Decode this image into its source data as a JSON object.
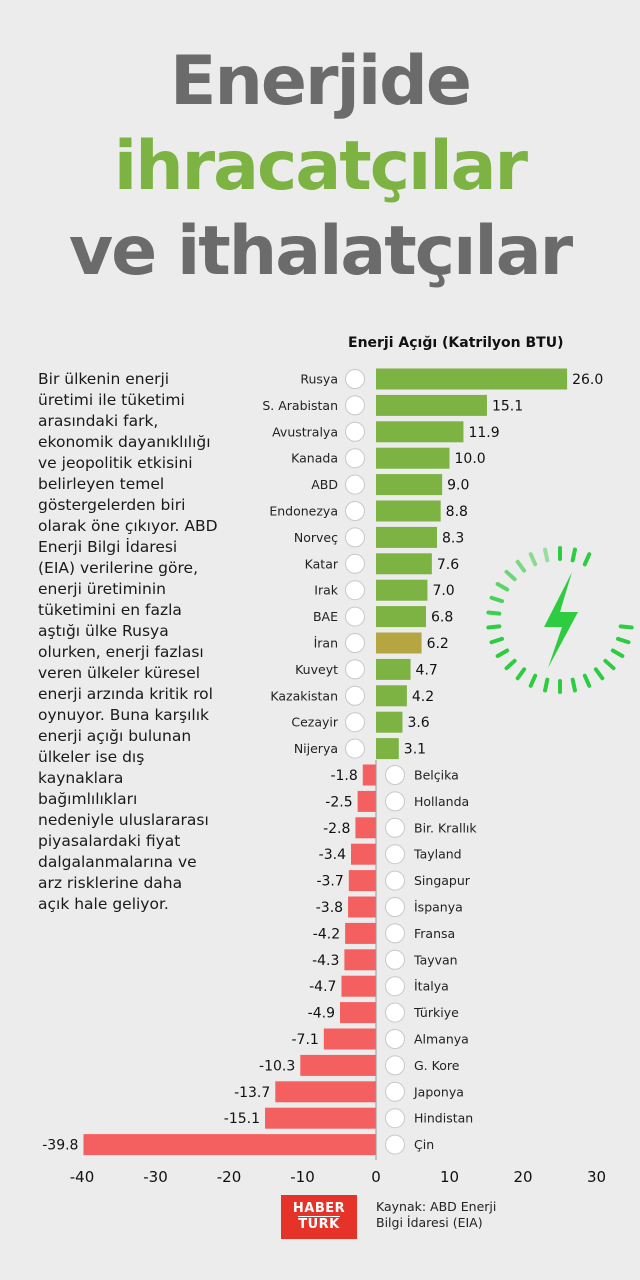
{
  "title": {
    "line1": "Enerjide",
    "line2": "ihracatçılar",
    "line3": "ve ithalatçılar"
  },
  "description": "Bir ülkenin enerji üretimi ile tüketimi arasındaki fark, ekonomik dayanıklılığı ve jeopolitik etkisini belirleyen temel göstergelerden biri olarak öne çıkıyor. ABD Enerji Bilgi İdaresi (EIA) verilerine göre, enerji üretiminin tüketimini en fazla aştığı ülke Rusya olurken, enerji fazlası veren ülkeler küresel enerji arzında kritik rol oynuyor. Buna karşılık enerji açığı bulunan ülkeler ise dış kaynaklara bağımlılıkları nedeniyle uluslararası piyasalardaki fiyat dalgalanmalarına ve arz risklerine daha açık hale geliyor.",
  "source": {
    "line1": "Kaynak: ABD Enerji",
    "line2": "Bilgi İdaresi (EIA)"
  },
  "logo": {
    "line1": "HABER",
    "line2": "TURK"
  },
  "colors": {
    "positive": "#7cb342",
    "highlight": "#b5a642",
    "negative": "#f4605f",
    "title_gray": "#6b6b6b",
    "title_green": "#7cb342",
    "icon_green": "#2ecc40"
  },
  "icon": "lightning-bolt-icon",
  "chart_data": {
    "type": "bar",
    "orientation": "horizontal",
    "ylabel": "Enerji Açığı (Katrilyon BTU)",
    "xlim": [
      -40,
      30
    ],
    "xticks": [
      -40,
      -30,
      -20,
      -10,
      0,
      10,
      20,
      30
    ],
    "grid": false,
    "categories": [
      "Rusya",
      "S. Arabistan",
      "Avustralya",
      "Kanada",
      "ABD",
      "Endonezya",
      "Norveç",
      "Katar",
      "Irak",
      "BAE",
      "İran",
      "Kuveyt",
      "Kazakistan",
      "Cezayir",
      "Nijerya",
      "Belçika",
      "Hollanda",
      "Bir. Krallık",
      "Tayland",
      "Singapur",
      "İspanya",
      "Fransa",
      "Tayvan",
      "İtalya",
      "Türkiye",
      "Almanya",
      "G. Kore",
      "Japonya",
      "Hindistan",
      "Çin"
    ],
    "values": [
      26.0,
      15.1,
      11.9,
      10.0,
      9.0,
      8.8,
      8.3,
      7.6,
      7.0,
      6.8,
      6.2,
      4.7,
      4.2,
      3.6,
      3.1,
      -1.8,
      -2.5,
      -2.8,
      -3.4,
      -3.7,
      -3.8,
      -4.2,
      -4.3,
      -4.7,
      -4.9,
      -7.1,
      -10.3,
      -13.7,
      -15.1,
      -39.8
    ],
    "value_labels": [
      "26.0",
      "15.1",
      "11.9",
      "10.0",
      "9.0",
      "8.8",
      "8.3",
      "7.6",
      "7.0",
      "6.8",
      "6.2",
      "4.7",
      "4.2",
      "3.6",
      "3.1",
      "-1.8",
      "-2.5",
      "-2.8",
      "-3.4",
      "-3.7",
      "-3.8",
      "-4.2",
      "-4.3",
      "-4.7",
      "-4.9",
      "-7.1",
      "-10.3",
      "-13.7",
      "-15.1",
      "-39.8"
    ],
    "highlight_category": "İran"
  }
}
